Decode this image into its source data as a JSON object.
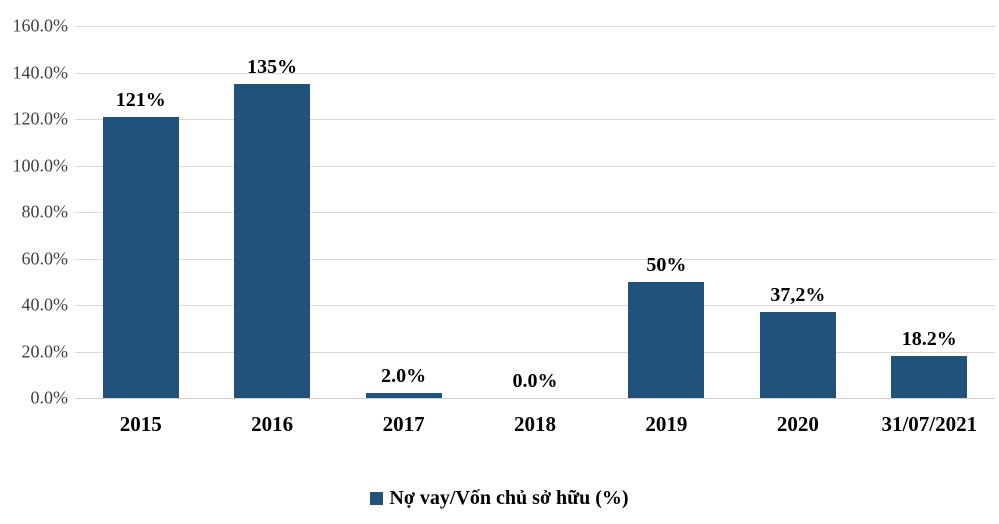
{
  "chart_data": {
    "type": "bar",
    "categories": [
      "2015",
      "2016",
      "2017",
      "2018",
      "2019",
      "2020",
      "31/07/2021"
    ],
    "values": [
      121,
      135,
      2.0,
      0.0,
      50,
      37.2,
      18.2
    ],
    "value_labels": [
      "121%",
      "135%",
      "2.0%",
      "0.0%",
      "50%",
      "37,2%",
      "18.2%"
    ],
    "title": "",
    "xlabel": "",
    "ylabel": "",
    "ylim": [
      0,
      160
    ],
    "ytick_step": 20,
    "ytick_labels": [
      "0.0%",
      "20.0%",
      "40.0%",
      "60.0%",
      "80.0%",
      "100.0%",
      "120.0%",
      "140.0%",
      "160.0%"
    ],
    "grid": true,
    "legend_position": "bottom",
    "legend": "Nợ vay/Vốn chủ sở hữu (%)",
    "bar_color": "#21527c",
    "gridline_color": "#d9d9d9"
  }
}
